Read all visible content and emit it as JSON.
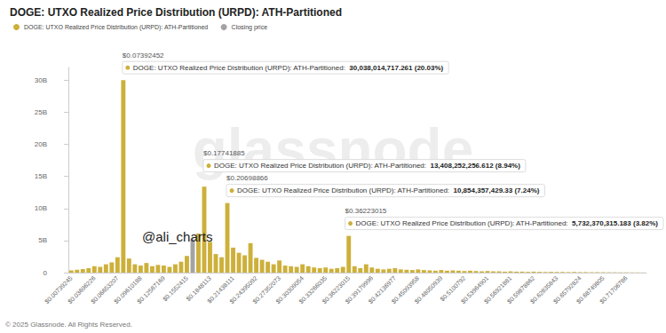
{
  "chart_data": {
    "type": "bar",
    "title": "DOGE: UTXO Realized Price Distribution (URPD): ATH-Partitioned",
    "categories": [
      "$0.00739245",
      null,
      null,
      null,
      "$0.03696226",
      null,
      null,
      null,
      "$0.06653207",
      null,
      null,
      null,
      "$0.09610188",
      null,
      null,
      null,
      "$0.12567169",
      null,
      null,
      null,
      "$0.1552415",
      null,
      null,
      null,
      "$0.1848113",
      null,
      null,
      null,
      "$0.21438111",
      null,
      null,
      null,
      "$0.24395092",
      null,
      null,
      null,
      "$0.27352073",
      null,
      null,
      null,
      "$0.30309054",
      null,
      null,
      null,
      "$0.33266035",
      null,
      null,
      null,
      "$0.36223015",
      null,
      null,
      null,
      "$0.39179996",
      null,
      null,
      null,
      "$0.42136977",
      null,
      null,
      null,
      "$0.45093958",
      null,
      null,
      null,
      "$0.48050939",
      null,
      null,
      null,
      "$0.5100792",
      null,
      null,
      null,
      "$0.53964901",
      null,
      null,
      null,
      "$0.56921881",
      null,
      null,
      null,
      "$0.59878862",
      null,
      null,
      null,
      "$0.62835843",
      null,
      null,
      null,
      "$0.65792824",
      null,
      null,
      null,
      "$0.68749805",
      null,
      null,
      null,
      "$0.71706786",
      null,
      null,
      null
    ],
    "series": [
      {
        "name": "DOGE: UTXO Realized Price Distribution (URPD): ATH-Partitioned",
        "color": "#cdb03a",
        "values": [
          350000000,
          450000000,
          550000000,
          700000000,
          1000000000,
          900000000,
          1300000000,
          1600000000,
          2400000000,
          30038014717.261,
          2200000000,
          1300000000,
          1100000000,
          1500000000,
          1000000000,
          1200000000,
          1100000000,
          900000000,
          1300000000,
          1700000000,
          2600000000,
          null,
          6100000000,
          13408252256.612,
          4800000000,
          2900000000,
          2400000000,
          10854357429.33,
          3900000000,
          3100000000,
          2700000000,
          4600000000,
          2300000000,
          2000000000,
          1700000000,
          1300000000,
          1900000000,
          1100000000,
          1000000000,
          900000000,
          1300000000,
          1000000000,
          800000000,
          700000000,
          800000000,
          600000000,
          700000000,
          900000000,
          5732370315.183,
          1000000000,
          700000000,
          1300000000,
          800000000,
          600000000,
          500000000,
          600000000,
          700000000,
          500000000,
          450000000,
          400000000,
          500000000,
          400000000,
          350000000,
          300000000,
          400000000,
          300000000,
          350000000,
          300000000,
          250000000,
          300000000,
          250000000,
          200000000,
          250000000,
          200000000,
          200000000,
          150000000,
          200000000,
          150000000,
          150000000,
          120000000,
          150000000,
          120000000,
          100000000,
          120000000,
          100000000,
          100000000,
          80000000,
          100000000,
          80000000,
          80000000,
          60000000,
          70000000,
          60000000,
          50000000,
          50000000,
          40000000,
          40000000,
          30000000,
          30000000,
          20000000
        ]
      },
      {
        "name": "Closing price",
        "color": "#a3a3a3",
        "values": [
          null,
          null,
          null,
          null,
          null,
          null,
          null,
          null,
          null,
          null,
          null,
          null,
          null,
          null,
          null,
          null,
          null,
          null,
          null,
          null,
          null,
          5200000000,
          null,
          null,
          null,
          null,
          null,
          null,
          null,
          null,
          null,
          null,
          null,
          null,
          null,
          null,
          null,
          null,
          null,
          null,
          null,
          null,
          null,
          null,
          null,
          null,
          null,
          null,
          null,
          null,
          null,
          null,
          null,
          null,
          null,
          null,
          null,
          null,
          null,
          null,
          null,
          null,
          null,
          null,
          null,
          null,
          null,
          null,
          null,
          null,
          null,
          null,
          null,
          null,
          null,
          null,
          null,
          null,
          null,
          null,
          null,
          null,
          null,
          null,
          null,
          null,
          null,
          null,
          null,
          null,
          null,
          null,
          null,
          null,
          null,
          null,
          null,
          null,
          null,
          null
        ]
      }
    ],
    "ylim": [
      0,
      32000000000
    ],
    "yticks": [
      0,
      {
        "value": 5000000000,
        "label": "5B"
      },
      {
        "value": 10000000000,
        "label": "10B"
      },
      {
        "value": 15000000000,
        "label": "15B"
      },
      {
        "value": 20000000000,
        "label": "20B"
      },
      {
        "value": 25000000000,
        "label": "25B"
      },
      {
        "value": 30000000000,
        "label": "30B"
      }
    ],
    "grid": false,
    "legend": "top-left",
    "annotations": [
      {
        "price": "$0.07392452",
        "label": "DOGE: UTXO Realized Price Distribution (URPD): ATH-Partitioned:",
        "value": 30038014717.261,
        "value_label": "30,038,014,717.261 (20.03%)"
      },
      {
        "price": "$0.17741885",
        "label": "DOGE: UTXO Realized Price Distribution (URPD): ATH-Partitioned:",
        "value": 13408252256.612,
        "value_label": "13,408,252,256.612 (8.94%)"
      },
      {
        "price": "$0.20698866",
        "label": "DOGE: UTXO Realized Price Distribution (URPD): ATH-Partitioned:",
        "value": 10854357429.33,
        "value_label": "10,854,357,429.33 (7.24%)"
      },
      {
        "price": "$0.36223015",
        "label": "DOGE: UTXO Realized Price Distribution (URPD): ATH-Partitioned:",
        "value": 5732370315.183,
        "value_label": "5,732,370,315.183 (3.82%)"
      }
    ],
    "watermark": "glassnode",
    "credit": "@ali_charts",
    "footer": "© 2025 Glassnode. All Rights Reserved."
  }
}
